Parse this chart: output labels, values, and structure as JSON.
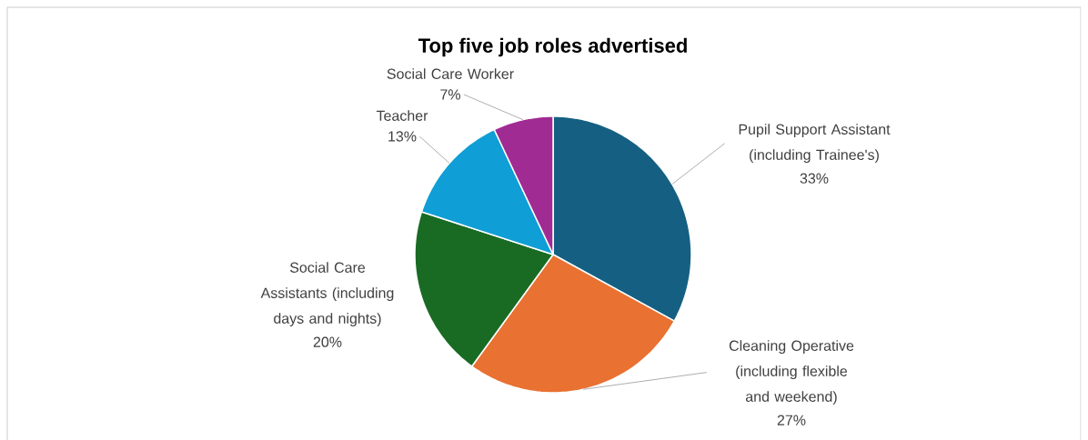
{
  "chart_data": {
    "type": "pie",
    "title": "Top five job roles advertised",
    "categories": [
      "Pupil Support Assistant (including Trainee's)",
      "Cleaning Operative (including flexible and weekend)",
      "Social Care Assistants (including days and nights)",
      "Teacher",
      "Social Care Worker"
    ],
    "values": [
      33,
      27,
      20,
      13,
      7
    ],
    "value_labels": [
      "33%",
      "27%",
      "20%",
      "13%",
      "7%"
    ],
    "colors": [
      "#156082",
      "#e97132",
      "#196b24",
      "#0f9ed5",
      "#a02b93"
    ]
  }
}
